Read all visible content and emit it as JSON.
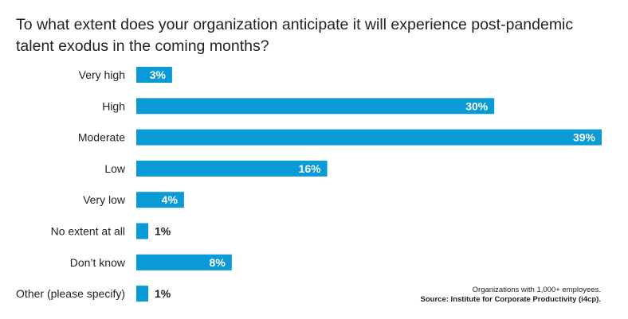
{
  "chart_data": {
    "type": "bar",
    "orientation": "horizontal",
    "title": "To what extent does your organization anticipate it will experience post-pandemic talent exodus in the coming months?",
    "categories": [
      "Very high",
      "High",
      "Moderate",
      "Low",
      "Very low",
      "No extent at all",
      "Don’t know",
      "Other (please specify)"
    ],
    "values": [
      3,
      30,
      39,
      16,
      4,
      1,
      8,
      1
    ],
    "value_labels": [
      "3%",
      "30%",
      "39%",
      "16%",
      "4%",
      "1%",
      "8%",
      "1%"
    ],
    "xlim": [
      0,
      39
    ],
    "grid": false,
    "legend": "none",
    "bar_color": "#0a9ad6"
  },
  "note": {
    "line1": "Organizations with 1,000+ employees.",
    "line2": "Source: Institute for Corporate Productivity (i4cp)."
  }
}
